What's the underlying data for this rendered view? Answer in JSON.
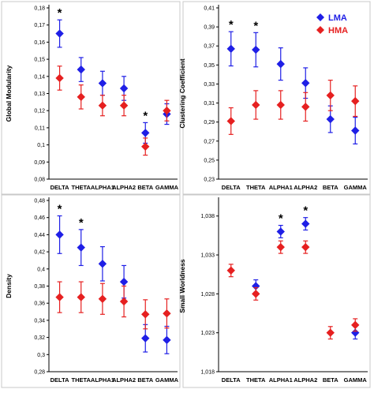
{
  "colors": {
    "LMA": "#1f1fe6",
    "HMA": "#e62020",
    "frame": "#000000"
  },
  "legend": {
    "items": [
      "LMA",
      "HMA"
    ],
    "placement": "top-right"
  },
  "chart_data": [
    {
      "type": "scatter",
      "ylabel": "Global Modularity",
      "categories": [
        "DELTA",
        "THETA",
        "ALPHA1",
        "ALPHA2",
        "BETA",
        "GAMMA"
      ],
      "yticks": [
        "0,08",
        "0,09",
        "0,1",
        "0,11",
        "0,12",
        "0,13",
        "0,14",
        "0,15",
        "0,16",
        "0,17",
        "0,18"
      ],
      "ylim": [
        0.08,
        0.18
      ],
      "series": [
        {
          "name": "LMA",
          "values": [
            0.165,
            0.144,
            0.136,
            0.133,
            0.107,
            0.118
          ],
          "err": [
            0.008,
            0.007,
            0.007,
            0.007,
            0.006,
            0.006
          ]
        },
        {
          "name": "HMA",
          "values": [
            0.139,
            0.128,
            0.123,
            0.123,
            0.099,
            0.12
          ],
          "err": [
            0.007,
            0.007,
            0.006,
            0.006,
            0.005,
            0.006
          ]
        }
      ],
      "annotations": [
        {
          "category": "DELTA",
          "text": "*"
        },
        {
          "category": "BETA",
          "text": "*"
        }
      ]
    },
    {
      "type": "scatter",
      "ylabel": "Clustering Coefficient",
      "categories": [
        "DELTA",
        "THETA",
        "ALPHA1",
        "ALPHA2",
        "BETA",
        "GAMMA"
      ],
      "yticks": [
        "0,23",
        "0,25",
        "0,27",
        "0,29",
        "0,31",
        "0,33",
        "0,35",
        "0,37",
        "0,39",
        "0,41"
      ],
      "ylim": [
        0.23,
        0.41
      ],
      "series": [
        {
          "name": "LMA",
          "values": [
            0.367,
            0.366,
            0.351,
            0.331,
            0.293,
            0.281
          ],
          "err": [
            0.018,
            0.018,
            0.017,
            0.016,
            0.014,
            0.014
          ]
        },
        {
          "name": "HMA",
          "values": [
            0.291,
            0.308,
            0.308,
            0.306,
            0.318,
            0.312
          ],
          "err": [
            0.014,
            0.015,
            0.015,
            0.015,
            0.016,
            0.016
          ]
        }
      ],
      "annotations": [
        {
          "category": "DELTA",
          "text": "*"
        },
        {
          "category": "THETA",
          "text": "*"
        }
      ]
    },
    {
      "type": "scatter",
      "ylabel": "Density",
      "categories": [
        "DELTA",
        "THETA",
        "ALPHA1",
        "ALPHA2",
        "BETA",
        "GAMMA"
      ],
      "yticks": [
        "0,28",
        "0,3",
        "0,32",
        "0,34",
        "0,36",
        "0,38",
        "0,4",
        "0,42",
        "0,44",
        "0,46",
        "0,48"
      ],
      "ylim": [
        0.28,
        0.48
      ],
      "series": [
        {
          "name": "LMA",
          "values": [
            0.44,
            0.425,
            0.406,
            0.385,
            0.319,
            0.317
          ],
          "err": [
            0.022,
            0.021,
            0.02,
            0.019,
            0.016,
            0.016
          ]
        },
        {
          "name": "HMA",
          "values": [
            0.367,
            0.367,
            0.365,
            0.362,
            0.347,
            0.348
          ],
          "err": [
            0.018,
            0.018,
            0.018,
            0.018,
            0.017,
            0.017
          ]
        }
      ],
      "annotations": [
        {
          "category": "DELTA",
          "text": "*"
        },
        {
          "category": "THETA",
          "text": "*"
        }
      ]
    },
    {
      "type": "scatter",
      "ylabel": "Small Worldness",
      "categories": [
        "DELTA",
        "THETA",
        "ALPHA1",
        "ALPHA2",
        "BETA",
        "GAMMA"
      ],
      "yticks": [
        "1,018",
        "1,023",
        "1,028",
        "1,033",
        "1,038"
      ],
      "ylim": [
        1.018,
        1.04
      ],
      "series": [
        {
          "name": "LMA",
          "values": [
            null,
            1.029,
            1.036,
            1.037,
            null,
            1.023
          ],
          "err": [
            0,
            0.0008,
            0.0008,
            0.0008,
            0,
            0.0008
          ]
        },
        {
          "name": "HMA",
          "values": [
            1.031,
            1.028,
            1.034,
            1.034,
            1.023,
            1.024
          ],
          "err": [
            0.0008,
            0.0008,
            0.0008,
            0.0008,
            0.0008,
            0.0008
          ]
        }
      ],
      "annotations": [
        {
          "category": "ALPHA1",
          "text": "*"
        },
        {
          "category": "ALPHA2",
          "text": "*"
        }
      ]
    }
  ]
}
